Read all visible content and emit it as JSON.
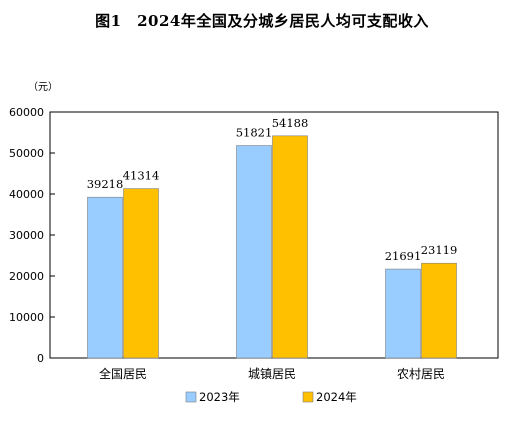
{
  "chart_data": {
    "type": "bar",
    "title": "图1　2024年全国及分城乡居民人均可支配收入",
    "unit": "（元）",
    "categories": [
      "全国居民",
      "城镇居民",
      "农村居民"
    ],
    "series": [
      {
        "name": "2023年",
        "values": [
          39218,
          51821,
          21691
        ],
        "color": "#99CCFF"
      },
      {
        "name": "2024年",
        "values": [
          41314,
          54188,
          23119
        ],
        "color": "#FFC000"
      }
    ],
    "ylim": [
      0,
      60000
    ],
    "yticks": [
      0,
      10000,
      20000,
      30000,
      40000,
      50000,
      60000
    ],
    "grid": false,
    "legend_position": "bottom"
  }
}
